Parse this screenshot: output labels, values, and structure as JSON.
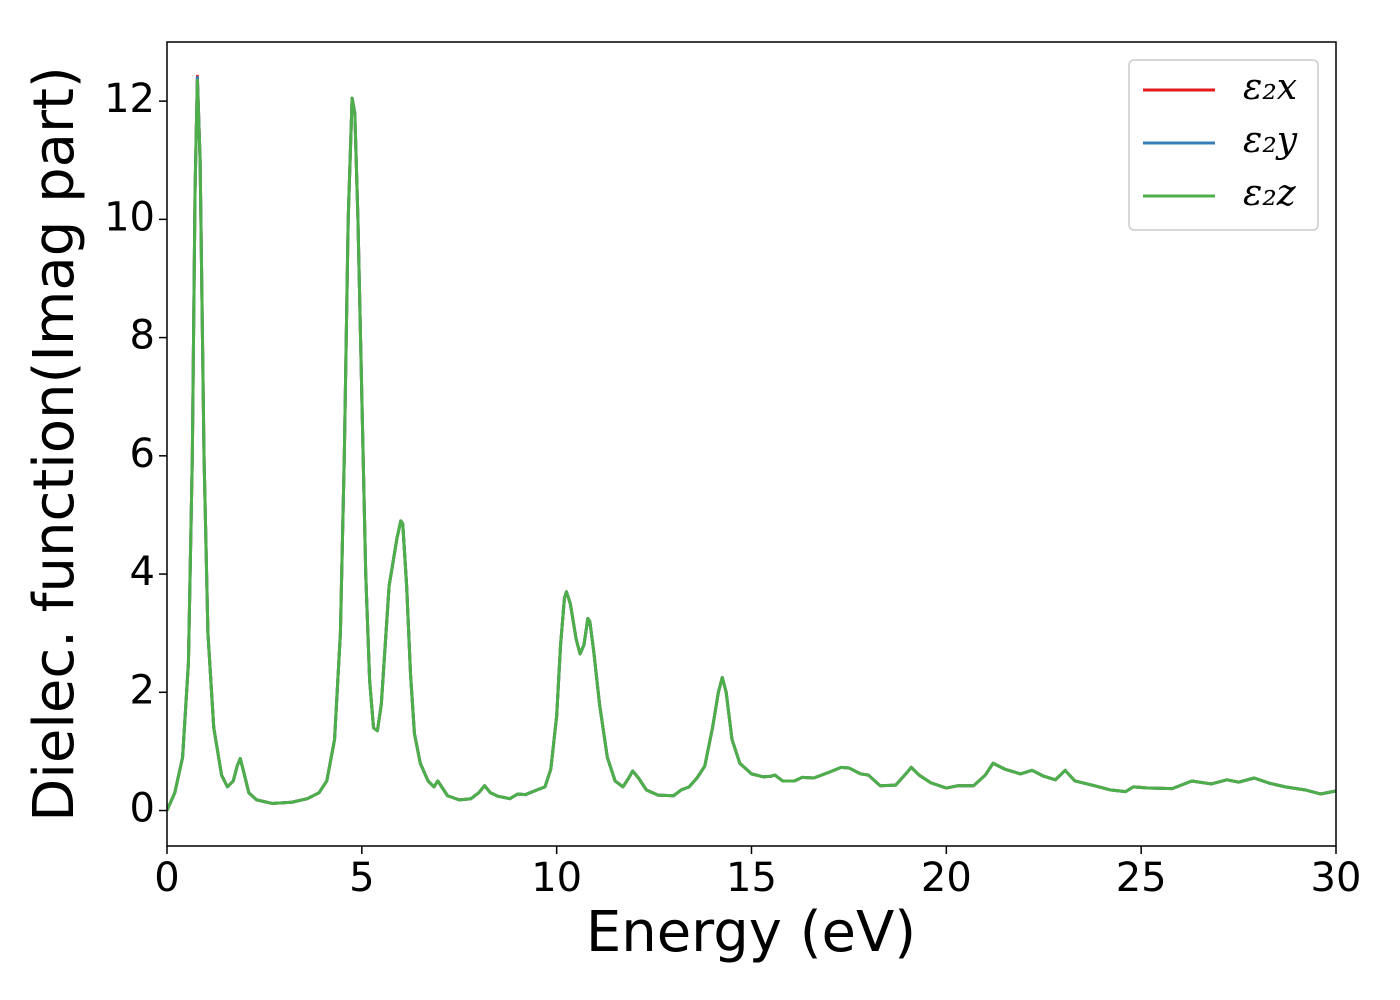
{
  "chart_data": {
    "type": "line",
    "x_label": "Energy (eV)",
    "y_label": "Dielec. function(Imag part)",
    "xlim": [
      0,
      30
    ],
    "xticks": [
      0,
      5,
      10,
      15,
      20,
      25,
      30
    ],
    "ylim": [
      -0.6,
      13.0
    ],
    "yticks": [
      0,
      2,
      4,
      6,
      8,
      10,
      12
    ],
    "legend": "upper right",
    "grid": false,
    "x": [
      0,
      0.2,
      0.4,
      0.55,
      0.65,
      0.72,
      0.78,
      0.85,
      0.95,
      1.05,
      1.2,
      1.4,
      1.55,
      1.7,
      1.8,
      1.88,
      1.95,
      2.1,
      2.3,
      2.7,
      3.2,
      3.6,
      3.9,
      4.1,
      4.3,
      4.45,
      4.55,
      4.65,
      4.75,
      4.82,
      4.9,
      5.0,
      5.1,
      5.2,
      5.3,
      5.4,
      5.5,
      5.6,
      5.7,
      5.8,
      5.9,
      6.0,
      6.05,
      6.15,
      6.25,
      6.35,
      6.5,
      6.7,
      6.85,
      6.95,
      7.05,
      7.2,
      7.5,
      7.8,
      8.0,
      8.15,
      8.3,
      8.5,
      8.8,
      9.0,
      9.2,
      9.5,
      9.7,
      9.85,
      10.0,
      10.1,
      10.2,
      10.25,
      10.35,
      10.5,
      10.6,
      10.7,
      10.8,
      10.85,
      10.95,
      11.1,
      11.3,
      11.5,
      11.7,
      11.85,
      11.95,
      12.1,
      12.3,
      12.6,
      13.0,
      13.2,
      13.4,
      13.6,
      13.8,
      14.0,
      14.15,
      14.25,
      14.35,
      14.5,
      14.7,
      15.0,
      15.3,
      15.5,
      15.6,
      15.8,
      16.1,
      16.3,
      16.6,
      17.0,
      17.3,
      17.5,
      17.8,
      18.0,
      18.3,
      18.7,
      19.0,
      19.1,
      19.3,
      19.6,
      20.0,
      20.3,
      20.7,
      21.0,
      21.2,
      21.5,
      21.9,
      22.2,
      22.5,
      22.8,
      23.05,
      23.3,
      23.8,
      24.2,
      24.6,
      24.8,
      25.2,
      25.8,
      26.3,
      26.8,
      27.2,
      27.5,
      27.9,
      28.3,
      28.7,
      29.2,
      29.6,
      30.0
    ],
    "series": [
      {
        "name": "ε₂x",
        "color": "#e41a1c",
        "values": [
          0,
          0.3,
          0.9,
          2.5,
          6,
          10.5,
          12.42,
          11,
          6,
          3,
          1.4,
          0.6,
          0.4,
          0.5,
          0.75,
          0.88,
          0.7,
          0.3,
          0.18,
          0.12,
          0.14,
          0.2,
          0.3,
          0.5,
          1.2,
          3,
          6,
          10,
          12.05,
          11.8,
          10,
          7,
          4,
          2.2,
          1.4,
          1.35,
          1.8,
          2.8,
          3.8,
          4.2,
          4.6,
          4.9,
          4.85,
          3.8,
          2.3,
          1.3,
          0.8,
          0.5,
          0.4,
          0.5,
          0.4,
          0.25,
          0.18,
          0.2,
          0.3,
          0.42,
          0.3,
          0.24,
          0.2,
          0.28,
          0.27,
          0.35,
          0.4,
          0.7,
          1.6,
          2.8,
          3.6,
          3.7,
          3.5,
          2.9,
          2.65,
          2.8,
          3.25,
          3.2,
          2.7,
          1.8,
          0.9,
          0.5,
          0.4,
          0.55,
          0.67,
          0.55,
          0.35,
          0.26,
          0.25,
          0.35,
          0.4,
          0.55,
          0.75,
          1.4,
          2.0,
          2.25,
          2.0,
          1.2,
          0.8,
          0.62,
          0.57,
          0.58,
          0.6,
          0.5,
          0.5,
          0.56,
          0.55,
          0.65,
          0.73,
          0.72,
          0.62,
          0.6,
          0.42,
          0.43,
          0.65,
          0.73,
          0.6,
          0.47,
          0.38,
          0.42,
          0.42,
          0.6,
          0.8,
          0.7,
          0.62,
          0.68,
          0.58,
          0.52,
          0.68,
          0.5,
          0.42,
          0.35,
          0.32,
          0.4,
          0.38,
          0.37,
          0.5,
          0.45,
          0.52,
          0.48,
          0.55,
          0.46,
          0.4,
          0.35,
          0.28,
          0.33
        ]
      },
      {
        "name": "ε₂y",
        "color": "#377eb8",
        "values": [
          0,
          0.3,
          0.9,
          2.5,
          6,
          10.5,
          12.4,
          11,
          6,
          3,
          1.4,
          0.6,
          0.4,
          0.5,
          0.75,
          0.88,
          0.7,
          0.3,
          0.18,
          0.12,
          0.14,
          0.2,
          0.3,
          0.5,
          1.2,
          3,
          6,
          10,
          12.05,
          11.8,
          10,
          7,
          4,
          2.2,
          1.4,
          1.35,
          1.8,
          2.8,
          3.8,
          4.2,
          4.6,
          4.9,
          4.85,
          3.8,
          2.3,
          1.3,
          0.8,
          0.5,
          0.4,
          0.5,
          0.4,
          0.25,
          0.18,
          0.2,
          0.3,
          0.42,
          0.3,
          0.24,
          0.2,
          0.28,
          0.27,
          0.35,
          0.4,
          0.7,
          1.6,
          2.8,
          3.6,
          3.7,
          3.5,
          2.9,
          2.65,
          2.8,
          3.25,
          3.2,
          2.7,
          1.8,
          0.9,
          0.5,
          0.4,
          0.55,
          0.67,
          0.55,
          0.35,
          0.26,
          0.25,
          0.35,
          0.4,
          0.55,
          0.75,
          1.4,
          2.0,
          2.25,
          2.0,
          1.2,
          0.8,
          0.62,
          0.57,
          0.58,
          0.6,
          0.5,
          0.5,
          0.56,
          0.55,
          0.65,
          0.73,
          0.72,
          0.62,
          0.6,
          0.42,
          0.43,
          0.65,
          0.73,
          0.6,
          0.47,
          0.38,
          0.42,
          0.42,
          0.6,
          0.8,
          0.7,
          0.62,
          0.68,
          0.58,
          0.52,
          0.68,
          0.5,
          0.42,
          0.35,
          0.32,
          0.4,
          0.38,
          0.37,
          0.5,
          0.45,
          0.52,
          0.48,
          0.55,
          0.46,
          0.4,
          0.35,
          0.28,
          0.33
        ]
      },
      {
        "name": "ε₂z",
        "color": "#4daf4a",
        "values": [
          0,
          0.3,
          0.9,
          2.5,
          6,
          10.5,
          12.35,
          11,
          6,
          3,
          1.4,
          0.6,
          0.4,
          0.5,
          0.75,
          0.88,
          0.7,
          0.3,
          0.18,
          0.12,
          0.14,
          0.2,
          0.3,
          0.5,
          1.2,
          3,
          6,
          10,
          12.05,
          11.8,
          10,
          7,
          4,
          2.2,
          1.4,
          1.35,
          1.8,
          2.8,
          3.8,
          4.2,
          4.6,
          4.9,
          4.85,
          3.8,
          2.3,
          1.3,
          0.8,
          0.5,
          0.4,
          0.5,
          0.4,
          0.25,
          0.18,
          0.2,
          0.3,
          0.42,
          0.3,
          0.24,
          0.2,
          0.28,
          0.27,
          0.35,
          0.4,
          0.7,
          1.6,
          2.8,
          3.6,
          3.7,
          3.5,
          2.9,
          2.65,
          2.8,
          3.25,
          3.2,
          2.7,
          1.8,
          0.9,
          0.5,
          0.4,
          0.55,
          0.67,
          0.55,
          0.35,
          0.26,
          0.25,
          0.35,
          0.4,
          0.55,
          0.75,
          1.4,
          2.0,
          2.25,
          2.0,
          1.2,
          0.8,
          0.62,
          0.57,
          0.58,
          0.6,
          0.5,
          0.5,
          0.56,
          0.55,
          0.65,
          0.73,
          0.72,
          0.62,
          0.6,
          0.42,
          0.43,
          0.65,
          0.73,
          0.6,
          0.47,
          0.38,
          0.42,
          0.42,
          0.6,
          0.8,
          0.7,
          0.62,
          0.68,
          0.58,
          0.52,
          0.68,
          0.5,
          0.42,
          0.35,
          0.32,
          0.4,
          0.38,
          0.37,
          0.5,
          0.45,
          0.52,
          0.48,
          0.55,
          0.46,
          0.4,
          0.35,
          0.28,
          0.33
        ]
      }
    ]
  }
}
